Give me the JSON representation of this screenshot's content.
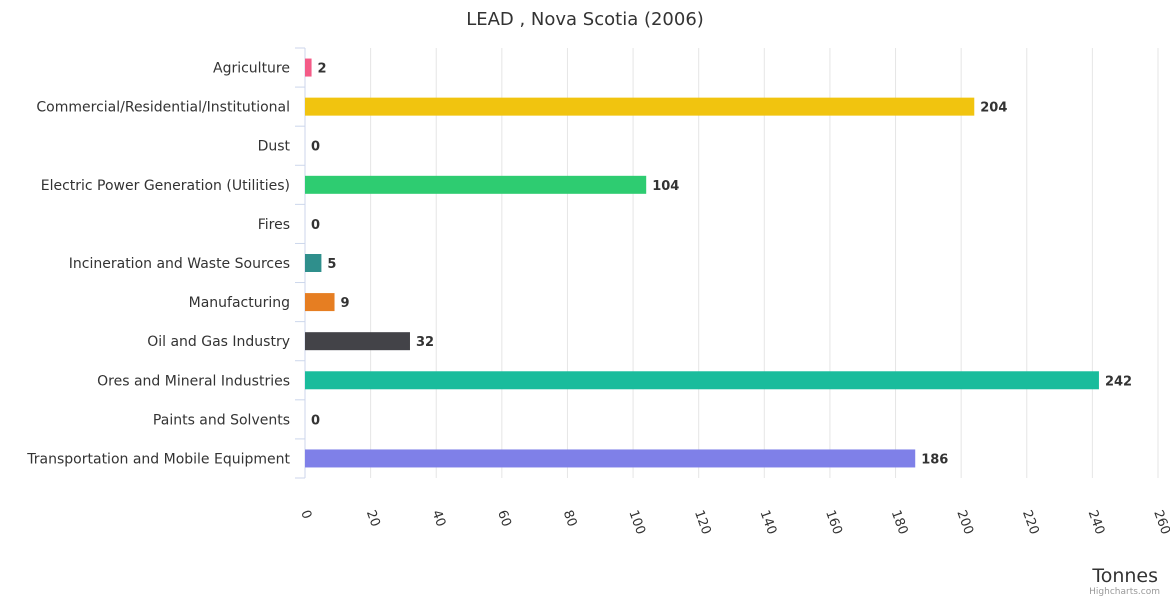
{
  "chart_data": {
    "type": "bar",
    "orientation": "horizontal",
    "title": "LEAD , Nova Scotia (2006)",
    "xlabel": "",
    "ylabel": "Tonnes",
    "categories": [
      "Agriculture",
      "Commercial/Residential/Institutional",
      "Dust",
      "Electric Power Generation (Utilities)",
      "Fires",
      "Incineration and Waste Sources",
      "Manufacturing",
      "Oil and Gas Industry",
      "Ores and Mineral Industries",
      "Paints and Solvents",
      "Transportation and Mobile Equipment"
    ],
    "values": [
      2,
      204,
      0,
      104,
      0,
      5,
      9,
      32,
      242,
      0,
      186
    ],
    "colors": [
      "#f45b87",
      "#f1c40f",
      "#2b908f",
      "#2ecc71",
      "#7798bf",
      "#2f8f8c",
      "#e67e22",
      "#434348",
      "#1abc9c",
      "#90ed7d",
      "#7f80e8"
    ],
    "value_axis": {
      "range": [
        0,
        260
      ],
      "ticks": [
        0,
        20,
        40,
        60,
        80,
        100,
        120,
        140,
        160,
        180,
        200,
        220,
        240,
        260
      ],
      "title": "Tonnes",
      "grid": true
    },
    "legend": "none",
    "credits": "Highcharts.com"
  }
}
